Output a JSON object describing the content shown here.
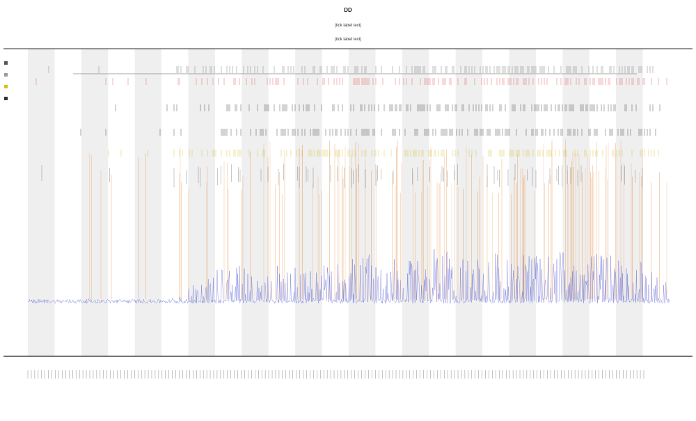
{
  "chart_data": {
    "type": "line",
    "title_lines": [
      "DD",
      "(tick label text)",
      "(tick label text)"
    ],
    "xlabel": "",
    "ylabel": "",
    "grid": false,
    "shaded_bands": 12,
    "legend": {
      "placement": "top-left",
      "entries": [
        {
          "marker_color": "#555555"
        },
        {
          "marker_color": "#9a9a9a"
        },
        {
          "marker_color": "#d8c21a"
        },
        {
          "marker_color": "#333333"
        }
      ]
    },
    "series": [
      {
        "kind": "signal",
        "color": "#5a63d6",
        "baseline": 0.12,
        "activity": [
          0.05,
          0.04,
          0.05,
          0.06,
          0.05,
          0.06,
          0.1,
          0.35,
          0.42,
          0.3,
          0.45,
          0.38,
          0.4,
          0.52,
          0.46,
          0.44,
          0.6,
          0.48,
          0.5,
          0.55,
          0.47,
          0.58,
          0.52,
          0.5,
          0.42,
          0.2
        ]
      },
      {
        "kind": "event-bars",
        "color": "#e87a1f",
        "density": [
          0.02,
          0.01,
          0.0,
          0.15,
          0.0,
          0.05,
          0.25,
          0.3,
          0.35,
          0.3,
          0.45,
          0.4,
          0.35,
          0.5,
          0.4,
          0.45,
          0.6,
          0.4,
          0.5,
          0.55,
          0.45,
          0.55,
          0.5,
          0.45,
          0.35,
          0.05
        ]
      },
      {
        "kind": "raster",
        "color": "#111111",
        "row": 1
      },
      {
        "kind": "raster",
        "color": "#111111",
        "row": 2
      },
      {
        "kind": "raster",
        "color": "#c9b400",
        "row": 3
      },
      {
        "kind": "raster",
        "color": "#dd3333",
        "row": 4
      },
      {
        "kind": "raster",
        "color": "#555555",
        "row": 5
      }
    ],
    "ticks": {
      "count": 180
    }
  }
}
